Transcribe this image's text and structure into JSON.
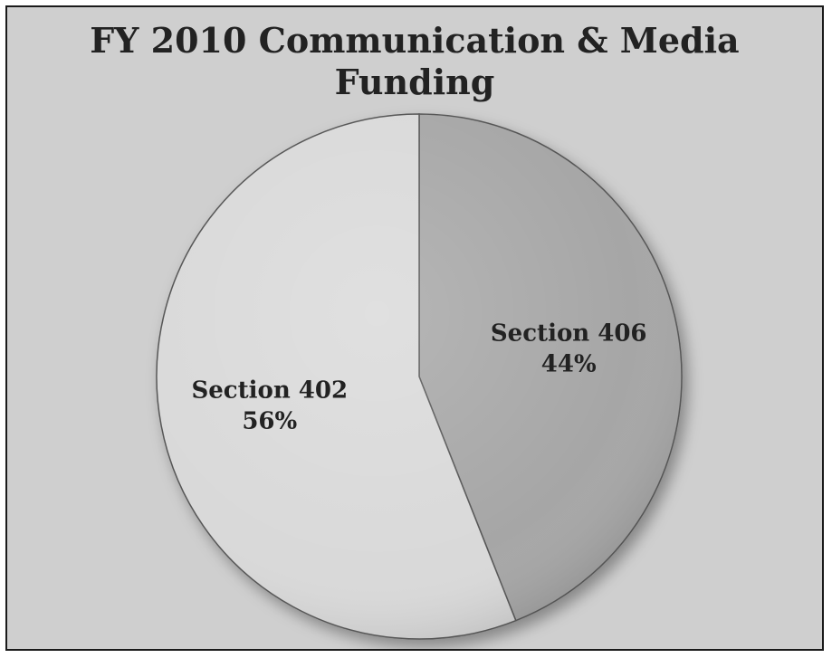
{
  "chart_data": {
    "type": "pie",
    "title_lines": [
      "FY 2010 Communication & Media",
      "Funding"
    ],
    "slices": [
      {
        "name": "Section 406",
        "value": 44,
        "label": "44%",
        "color": "#a6a6a6"
      },
      {
        "name": "Section 402",
        "value": 56,
        "label": "56%",
        "color": "#d9d9d9"
      }
    ],
    "start": "12 o'clock, clockwise",
    "legend": "none (labels on slices)"
  }
}
